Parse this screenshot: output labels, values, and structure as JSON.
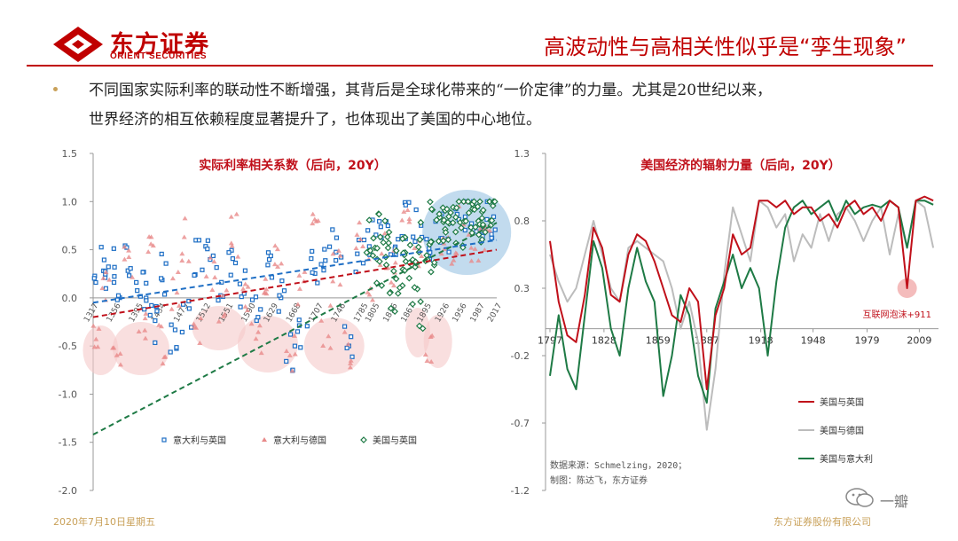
{
  "header": {
    "logo_cn": "东方证券",
    "logo_en": "ORIENT SECURITIES",
    "title": "高波动性与高相关性似乎是“孪生现象”"
  },
  "bullet": {
    "line1": "不同国家实际利率的联动性不断增强，其背后是全球化带来的“一价定律”的力量。尤其是20世纪以来，",
    "line2": "世界经济的相互依赖程度显著提升了，也体现出了美国的中心地位。"
  },
  "footer": {
    "date": "2020年7月10日星期五",
    "company": "东方证券股份有限公司"
  },
  "watermark": {
    "text": "一瓣"
  },
  "colors": {
    "brand_red": "#c00000",
    "dark_red": "#c0101a",
    "gray": "#bcbcbc",
    "green": "#1e7a45",
    "blue": "#1f6fc5",
    "pink": "#e88a8a"
  },
  "chart_data": [
    {
      "type": "scatter",
      "title": "实际利率相关系数（后向，20Y）",
      "ylim": [
        -2.0,
        1.5
      ],
      "yticks": [
        "1.5",
        "1.0",
        "0.5",
        "0.0",
        "-0.5",
        "-1.0",
        "-1.5",
        "-2.0"
      ],
      "xticks": [
        "1317",
        "1356",
        "1395",
        "1434",
        "1473",
        "1512",
        "1551",
        "1590",
        "1629",
        "1668",
        "1707",
        "1746",
        "1785",
        "1805",
        "1836",
        "1867",
        "1895",
        "1926",
        "1956",
        "1987",
        "2017"
      ],
      "series": [
        {
          "name": "意大利与英国",
          "x": [
            1320,
            1335,
            1345,
            1360,
            1380,
            1400,
            1410,
            1420,
            1440,
            1460,
            1480,
            1500,
            1520,
            1540,
            1560,
            1580,
            1600,
            1620,
            1640,
            1660,
            1680,
            1700,
            1720,
            1740,
            1760,
            1780,
            1800,
            1820,
            1840,
            1860,
            1880,
            1900,
            1920,
            1940,
            1960,
            1980,
            2000,
            2015
          ],
          "y": [
            0.2,
            0.4,
            0.3,
            0.1,
            0.35,
            0.2,
            0.0,
            -0.3,
            0.25,
            -0.5,
            -0.2,
            0.45,
            0.6,
            0.2,
            0.3,
            0.1,
            -0.2,
            0.25,
            0.05,
            -0.6,
            -0.3,
            0.3,
            0.5,
            0.6,
            -0.4,
            0.4,
            0.6,
            0.7,
            0.5,
            0.8,
            0.7,
            0.6,
            0.8,
            0.7,
            0.9,
            0.85,
            0.8,
            0.7
          ]
        },
        {
          "name": "意大利与德国",
          "x": [
            1320,
            1340,
            1360,
            1380,
            1400,
            1420,
            1440,
            1460,
            1480,
            1500,
            1520,
            1540,
            1560,
            1580,
            1600,
            1620,
            1640,
            1660,
            1680,
            1700,
            1720,
            1740,
            1760,
            1780,
            1800,
            1820,
            1840,
            1860,
            1880,
            1900,
            1920,
            1940,
            1960,
            1980,
            2000
          ],
          "y": [
            -0.4,
            0.1,
            -0.5,
            0.4,
            -0.3,
            0.5,
            -0.5,
            0.1,
            0.6,
            -0.3,
            0.3,
            -0.1,
            0.65,
            0.0,
            -0.4,
            0.2,
            0.5,
            -0.6,
            0.1,
            0.7,
            -0.3,
            0.3,
            -0.5,
            0.6,
            0.2,
            0.5,
            0.3,
            0.7,
            0.4,
            -0.5,
            0.6,
            0.5,
            0.8,
            0.6,
            0.7
          ]
        },
        {
          "name": "美国与英国",
          "x": [
            1800,
            1810,
            1820,
            1830,
            1840,
            1850,
            1860,
            1870,
            1880,
            1890,
            1900,
            1910,
            1920,
            1930,
            1940,
            1950,
            1960,
            1970,
            1980,
            1990,
            2000,
            2010,
            2017
          ],
          "y": [
            0.6,
            0.3,
            0.7,
            0.5,
            0.0,
            0.3,
            0.5,
            0.2,
            -0.1,
            0.6,
            0.4,
            0.8,
            0.7,
            0.9,
            0.8,
            0.7,
            0.9,
            0.85,
            0.9,
            0.8,
            0.9,
            0.95,
            0.8
          ]
        }
      ],
      "trendlines": [
        {
          "series": "意大利与英国",
          "y_start": -0.05,
          "y_end": 0.6
        },
        {
          "series": "意大利与德国",
          "y_start": -0.2,
          "y_end": 0.5
        },
        {
          "series": "美国与英国",
          "y_start": -1.42,
          "y_end": 0.78
        }
      ],
      "legend": [
        "意大利与英国",
        "意大利与德国",
        "美国与英国"
      ],
      "legend_position": "bottom"
    },
    {
      "type": "line",
      "title": "美国经济的辐射力量（后向，20Y）",
      "ylim": [
        -1.2,
        1.3
      ],
      "yticks": [
        "1.3",
        "0.8",
        "0.3",
        "-0.2",
        "-0.7",
        "-1.2"
      ],
      "xticks": [
        "1797",
        "1828",
        "1859",
        "1887",
        "1918",
        "1948",
        "1979",
        "2009"
      ],
      "x": [
        1797,
        1802,
        1807,
        1812,
        1817,
        1822,
        1827,
        1832,
        1837,
        1842,
        1847,
        1852,
        1857,
        1862,
        1867,
        1872,
        1877,
        1882,
        1887,
        1892,
        1897,
        1902,
        1907,
        1912,
        1917,
        1922,
        1927,
        1932,
        1937,
        1942,
        1947,
        1952,
        1957,
        1962,
        1967,
        1972,
        1977,
        1982,
        1987,
        1992,
        1997,
        2002,
        2007,
        2012,
        2017
      ],
      "series": [
        {
          "name": "美国与英国",
          "values": [
            0.65,
            0.2,
            -0.05,
            -0.1,
            0.25,
            0.75,
            0.6,
            0.25,
            0.2,
            0.55,
            0.7,
            0.65,
            0.5,
            0.3,
            0.1,
            0.05,
            0.3,
            0.2,
            -0.45,
            0.1,
            0.3,
            0.7,
            0.55,
            0.6,
            0.95,
            0.95,
            0.9,
            0.95,
            0.85,
            0.9,
            0.9,
            0.8,
            0.85,
            0.75,
            0.9,
            0.95,
            0.85,
            0.9,
            0.8,
            0.95,
            0.9,
            0.3,
            0.95,
            0.98,
            0.95
          ]
        },
        {
          "name": "美国与德国",
          "values": [
            0.55,
            0.35,
            0.2,
            0.3,
            0.55,
            0.8,
            0.55,
            0.3,
            0.2,
            0.6,
            0.65,
            0.6,
            0.55,
            0.5,
            0.3,
            0.0,
            0.2,
            -0.1,
            -0.75,
            -0.3,
            0.4,
            0.9,
            0.7,
            0.5,
            0.95,
            0.9,
            0.75,
            0.85,
            0.5,
            0.7,
            0.6,
            0.85,
            0.65,
            0.85,
            0.9,
            0.8,
            0.65,
            0.8,
            0.9,
            0.55,
            0.85,
            0.6,
            0.95,
            0.9,
            0.6
          ]
        },
        {
          "name": "美国与意大利",
          "values": [
            -0.35,
            0.1,
            -0.3,
            -0.45,
            0.1,
            0.65,
            0.45,
            0.0,
            -0.2,
            0.3,
            0.6,
            0.35,
            0.2,
            -0.5,
            -0.2,
            0.25,
            0.1,
            -0.35,
            -0.55,
            0.15,
            0.35,
            0.55,
            0.3,
            0.45,
            0.3,
            -0.2,
            0.35,
            0.75,
            0.9,
            0.95,
            0.85,
            0.9,
            0.95,
            0.8,
            0.95,
            0.85,
            0.9,
            0.92,
            0.9,
            0.95,
            0.9,
            0.6,
            0.95,
            0.95,
            0.92
          ]
        }
      ],
      "annotation": "互联网泡沫+911",
      "source": "数据来源：Schmelzing，2020；",
      "author": "制图：陈达飞，东方证券",
      "legend_position": "right"
    }
  ]
}
